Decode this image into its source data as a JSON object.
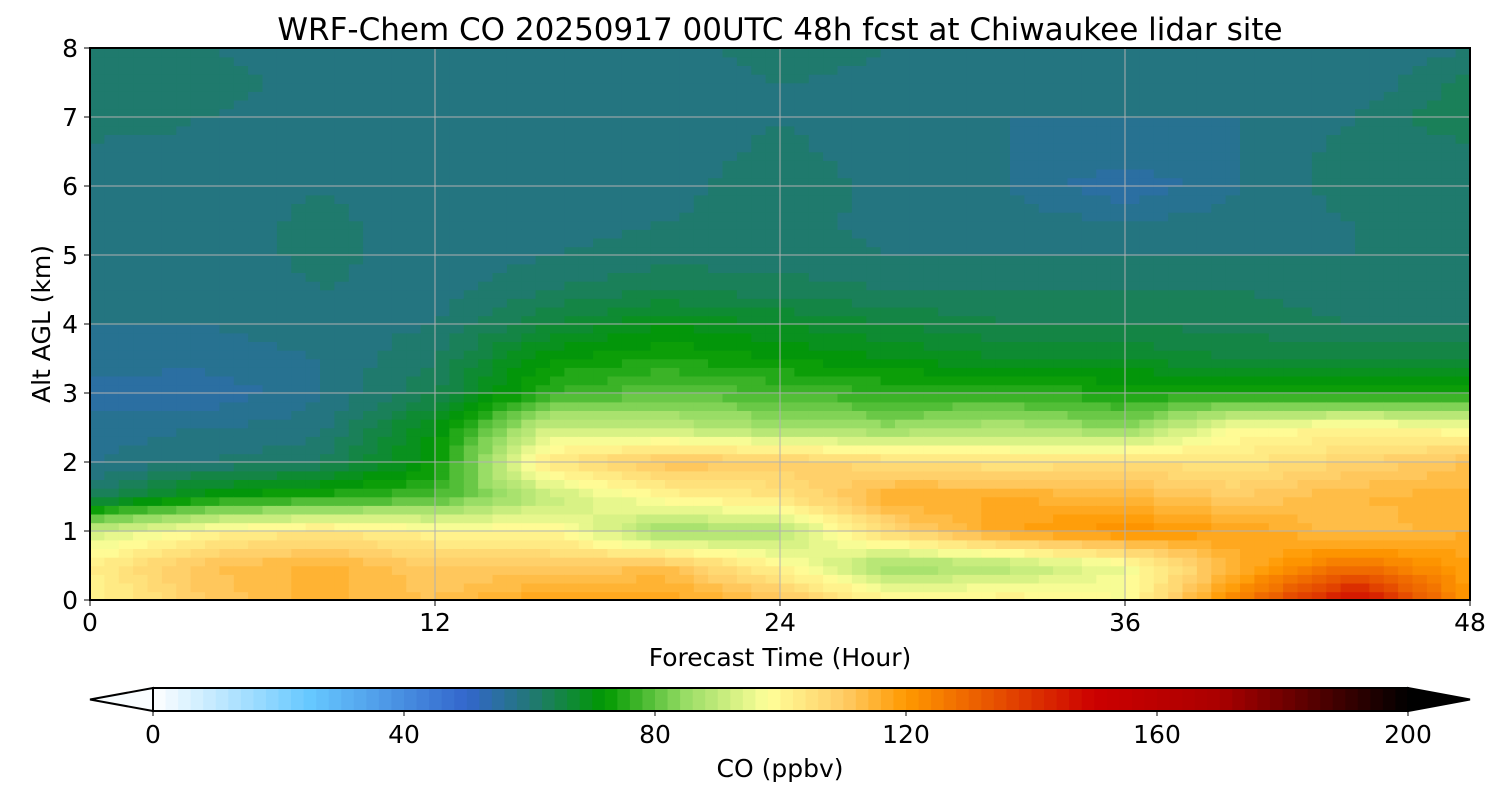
{
  "chart_data": {
    "type": "heatmap",
    "title": "WRF-Chem CO  20250917 00UTC 48h fcst at Chiwaukee lidar site",
    "xlabel": "Forecast Time (Hour)",
    "ylabel": "Alt AGL (km)",
    "xlim": [
      0,
      48
    ],
    "ylim": [
      0,
      8
    ],
    "xticks": [
      "0",
      "12",
      "24",
      "36",
      "48"
    ],
    "yticks": [
      "0",
      "1",
      "2",
      "3",
      "4",
      "5",
      "6",
      "7",
      "8"
    ],
    "grid": true,
    "x": [
      0,
      4,
      8,
      12,
      16,
      20,
      24,
      28,
      32,
      36,
      40,
      44,
      48
    ],
    "y": [
      0,
      0.5,
      1,
      1.5,
      2,
      2.5,
      3,
      3.5,
      4,
      4.5,
      5,
      5.5,
      6,
      6.5,
      7,
      7.5,
      8
    ],
    "z_by_time": [
      [
        100,
        102,
        92,
        62,
        58,
        57,
        55,
        57,
        58,
        58,
        58,
        58,
        58,
        59,
        62,
        62,
        60
      ],
      [
        110,
        112,
        100,
        72,
        60,
        58,
        54,
        57,
        58,
        58,
        58,
        58,
        58,
        59,
        60,
        62,
        60
      ],
      [
        115,
        115,
        104,
        75,
        62,
        59,
        58,
        58,
        59,
        60,
        61,
        61,
        60,
        59,
        58,
        58,
        58
      ],
      [
        112,
        110,
        100,
        78,
        72,
        70,
        64,
        62,
        60,
        59,
        58,
        58,
        58,
        58,
        58,
        58,
        58
      ],
      [
        118,
        110,
        100,
        90,
        104,
        92,
        76,
        72,
        66,
        62,
        60,
        59,
        58,
        58,
        58,
        59,
        60
      ],
      [
        118,
        112,
        85,
        100,
        112,
        90,
        80,
        74,
        70,
        64,
        61,
        60,
        59,
        58,
        58,
        58,
        58
      ],
      [
        112,
        100,
        88,
        104,
        110,
        86,
        78,
        72,
        68,
        63,
        61,
        61,
        62,
        61,
        60,
        60,
        62
      ],
      [
        100,
        85,
        108,
        116,
        106,
        85,
        76,
        70,
        66,
        62,
        60,
        59,
        59,
        58,
        58,
        59,
        60
      ],
      [
        102,
        88,
        118,
        116,
        104,
        88,
        76,
        68,
        64,
        62,
        60,
        59,
        58,
        58,
        58,
        58,
        58
      ],
      [
        98,
        96,
        122,
        114,
        106,
        84,
        74,
        68,
        64,
        62,
        60,
        58,
        54,
        57,
        58,
        58,
        58
      ],
      [
        125,
        115,
        118,
        110,
        104,
        98,
        74,
        66,
        63,
        62,
        60,
        59,
        58,
        58,
        58,
        58,
        58
      ],
      [
        150,
        128,
        112,
        114,
        108,
        100,
        74,
        66,
        62,
        61,
        60,
        60,
        61,
        61,
        60,
        58,
        58
      ],
      [
        120,
        118,
        116,
        115,
        112,
        98,
        74,
        66,
        62,
        61,
        60,
        60,
        60,
        61,
        64,
        63,
        60
      ]
    ],
    "colorbar": {
      "label": "CO  (ppbv)",
      "min": 0,
      "max": 200,
      "step": 2,
      "ticks": [
        "0",
        "40",
        "80",
        "120",
        "160",
        "200"
      ],
      "extend": "both"
    }
  }
}
